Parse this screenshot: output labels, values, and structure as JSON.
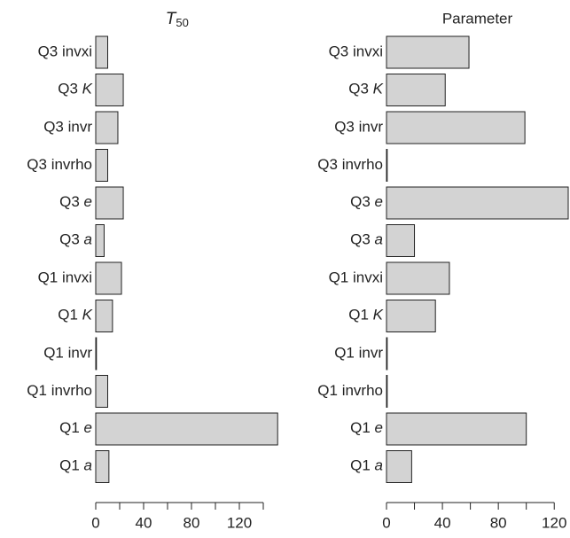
{
  "chart_data": [
    {
      "type": "barh",
      "title": "T50",
      "categories": [
        "Q3 invxi",
        "Q3 K",
        "Q3 invr",
        "Q3 invrho",
        "Q3 e",
        "Q3 a",
        "Q1 invxi",
        "Q1 K",
        "Q1 invr",
        "Q1 invrho",
        "Q1 e",
        "Q1 a"
      ],
      "values": [
        10,
        23,
        18.5,
        10,
        23,
        7,
        21.5,
        14,
        0,
        10,
        152,
        11
      ],
      "color": "#d3d3d3",
      "xlim": [
        0,
        152
      ],
      "xticks": [
        0,
        40,
        80,
        120
      ],
      "xminor_ticks": [
        20,
        60,
        100,
        140
      ]
    },
    {
      "type": "barh",
      "title": "Parameter",
      "categories": [
        "Q3 invxi",
        "Q3 K",
        "Q3 invr",
        "Q3 invrho",
        "Q3 e",
        "Q3 a",
        "Q1 invxi",
        "Q1 K",
        "Q1 invr",
        "Q1 invrho",
        "Q1 e",
        "Q1 a"
      ],
      "values": [
        59,
        42,
        99,
        0,
        130,
        20,
        45,
        35,
        0,
        0,
        100,
        18
      ],
      "color": "#d3d3d3",
      "xlim": [
        0,
        130
      ],
      "xticks": [
        0,
        40,
        80,
        120
      ],
      "xminor_ticks": [
        20,
        60,
        100
      ]
    }
  ]
}
